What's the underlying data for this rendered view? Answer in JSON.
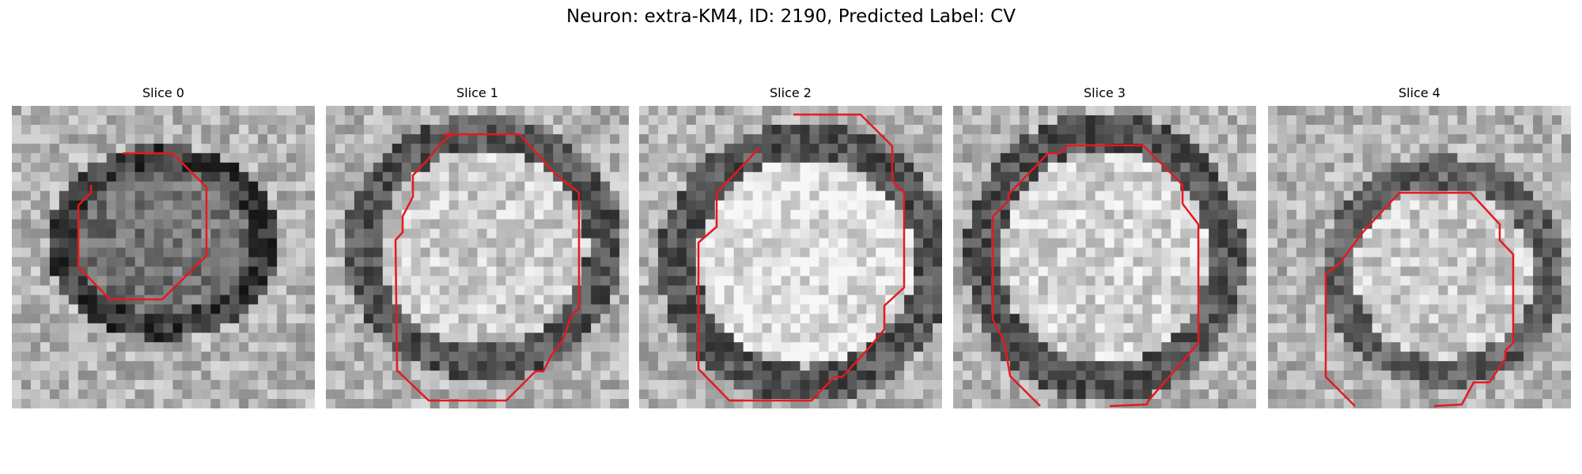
{
  "figure": {
    "suptitle": "Neuron: extra-KM4, ID: 2190, Predicted Label: CV",
    "contour_color": "#e6191e",
    "colormap": "grayscale",
    "panels": [
      {
        "title": "Slice 0"
      },
      {
        "title": "Slice 1"
      },
      {
        "title": "Slice 2"
      },
      {
        "title": "Slice 3"
      },
      {
        "title": "Slice 4"
      }
    ]
  }
}
